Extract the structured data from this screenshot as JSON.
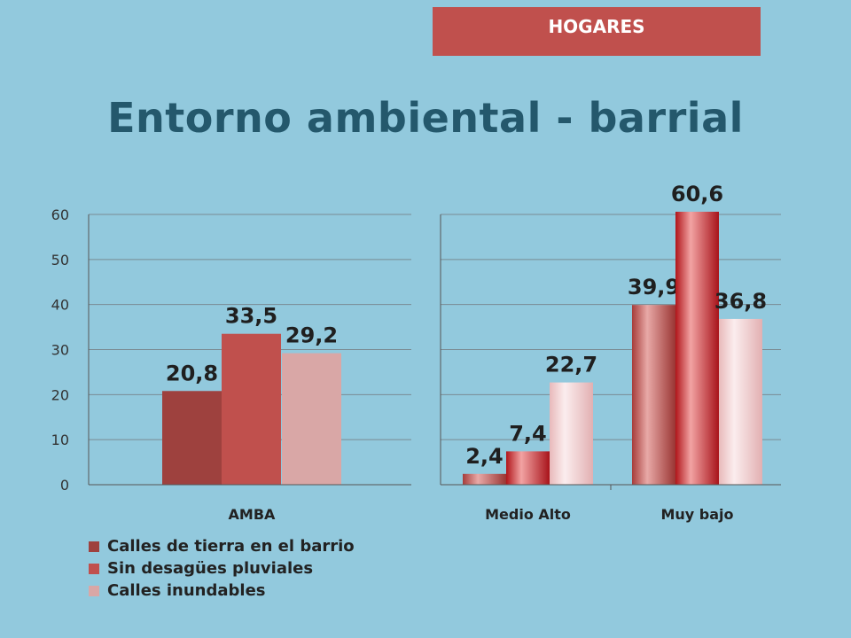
{
  "header": {
    "badge": "HOGARES",
    "title": "Entorno ambiental - barrial"
  },
  "colors": {
    "background": "#92C9DD",
    "badge": "#C0504D",
    "title": "#24586C",
    "series_left": [
      "#9E413E",
      "#C0504D",
      "#D9A7A6"
    ]
  },
  "legend": [
    {
      "label": "Calles de tierra en el barrio",
      "color": "#9E413E"
    },
    {
      "label": "Sin desagües pluviales",
      "color": "#C0504D"
    },
    {
      "label": "Calles inundables",
      "color": "#D9A7A6"
    }
  ],
  "chart_data": [
    {
      "type": "bar",
      "categories": [
        "AMBA"
      ],
      "series": [
        {
          "name": "Calles de tierra en el barrio",
          "values": [
            20.8
          ]
        },
        {
          "name": "Sin desagües pluviales",
          "values": [
            33.5
          ]
        },
        {
          "name": "Calles inundables",
          "values": [
            29.2
          ]
        }
      ],
      "data_labels": [
        [
          "20,8"
        ],
        [
          "33,5"
        ],
        [
          "29,2"
        ]
      ],
      "yticks": [
        "0",
        "10",
        "20",
        "30",
        "40",
        "50",
        "60"
      ],
      "ylim": [
        0,
        60
      ],
      "grid": true,
      "legend": "bottom-left"
    },
    {
      "type": "bar",
      "categories": [
        "Medio Alto",
        "Muy bajo"
      ],
      "series": [
        {
          "name": "Calles de tierra en el barrio",
          "values": [
            2.4,
            39.9
          ]
        },
        {
          "name": "Sin desagües pluviales",
          "values": [
            7.4,
            60.6
          ]
        },
        {
          "name": "Calles inundables",
          "values": [
            22.7,
            36.8
          ]
        }
      ],
      "data_labels": [
        [
          "2,4",
          "39,9"
        ],
        [
          "7,4",
          "60,6"
        ],
        [
          "22,7",
          "36,8"
        ]
      ],
      "ylim": [
        0,
        60
      ],
      "grid": true
    }
  ]
}
